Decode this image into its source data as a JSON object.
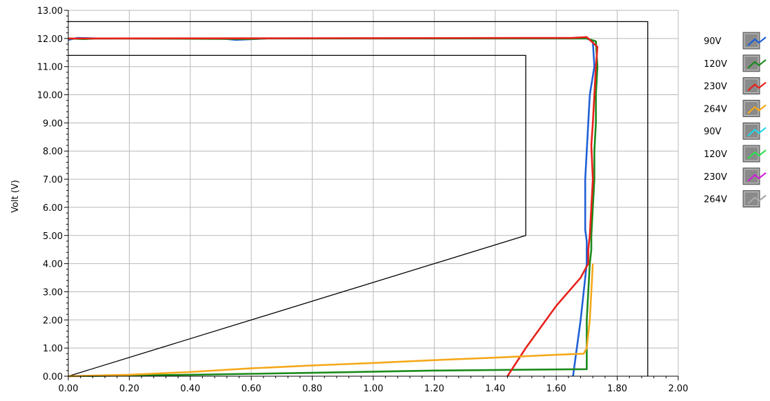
{
  "chart_data": {
    "type": "line",
    "title": "",
    "xlabel": "",
    "ylabel": "Volt (V)",
    "xlim": [
      0,
      2
    ],
    "ylim": [
      0,
      13
    ],
    "grid": true,
    "legend_position": "right",
    "x_ticks": [
      "0.00",
      "0.20",
      "0.40",
      "0.60",
      "0.80",
      "1.00",
      "1.20",
      "1.40",
      "1.60",
      "1.80",
      "2.00"
    ],
    "y_ticks": [
      "0.00",
      "1.00",
      "2.00",
      "3.00",
      "4.00",
      "5.00",
      "6.00",
      "7.00",
      "8.00",
      "9.00",
      "10.00",
      "11.00",
      "12.00",
      "13.00"
    ],
    "series": [
      {
        "name": "90V",
        "color": "#1f5fd6",
        "points": [
          [
            0.0,
            11.95
          ],
          [
            0.03,
            12.02
          ],
          [
            0.1,
            12.0
          ],
          [
            0.5,
            12.0
          ],
          [
            0.55,
            11.95
          ],
          [
            0.65,
            12.0
          ],
          [
            1.7,
            12.0
          ],
          [
            1.72,
            11.9
          ],
          [
            1.725,
            11.0
          ],
          [
            1.71,
            10.0
          ],
          [
            1.705,
            9.0
          ],
          [
            1.7,
            8.0
          ],
          [
            1.695,
            7.0
          ],
          [
            1.695,
            6.0
          ],
          [
            1.695,
            5.2
          ],
          [
            1.7,
            4.8
          ],
          [
            1.7,
            4.0
          ],
          [
            1.69,
            3.0
          ],
          [
            1.68,
            2.0
          ],
          [
            1.665,
            0.8
          ],
          [
            1.655,
            0.0
          ]
        ]
      },
      {
        "name": "120V",
        "color": "#1a8a1a",
        "points": [
          [
            0.0,
            12.0
          ],
          [
            0.05,
            11.98
          ],
          [
            0.1,
            12.0
          ],
          [
            0.6,
            11.98
          ],
          [
            0.65,
            12.0
          ],
          [
            1.7,
            12.0
          ],
          [
            1.73,
            11.9
          ],
          [
            1.735,
            11.0
          ],
          [
            1.73,
            10.0
          ],
          [
            1.73,
            9.0
          ],
          [
            1.725,
            8.0
          ],
          [
            1.725,
            7.0
          ],
          [
            1.72,
            6.0
          ],
          [
            1.715,
            5.0
          ],
          [
            1.715,
            4.5
          ],
          [
            1.71,
            4.0
          ],
          [
            1.705,
            3.0
          ],
          [
            1.7,
            2.0
          ],
          [
            1.7,
            1.0
          ],
          [
            1.7,
            0.25
          ],
          [
            1.6,
            0.24
          ],
          [
            1.2,
            0.2
          ],
          [
            0.8,
            0.12
          ],
          [
            0.4,
            0.05
          ],
          [
            0.1,
            0.01
          ],
          [
            0.0,
            0.0
          ]
        ]
      },
      {
        "name": "230V",
        "color": "#e8201a",
        "points": [
          [
            0.0,
            12.0
          ],
          [
            1.65,
            12.02
          ],
          [
            1.7,
            12.05
          ],
          [
            1.735,
            11.7
          ],
          [
            1.73,
            11.0
          ],
          [
            1.725,
            10.0
          ],
          [
            1.72,
            9.0
          ],
          [
            1.715,
            8.2
          ],
          [
            1.72,
            7.0
          ],
          [
            1.715,
            6.0
          ],
          [
            1.71,
            5.0
          ],
          [
            1.705,
            4.5
          ],
          [
            1.705,
            4.0
          ],
          [
            1.68,
            3.5
          ],
          [
            1.6,
            2.5
          ],
          [
            1.5,
            1.0
          ],
          [
            1.44,
            0.0
          ]
        ]
      },
      {
        "name": "264V",
        "color": "#f5a81a",
        "points": [
          [
            0.0,
            0.0
          ],
          [
            0.2,
            0.05
          ],
          [
            0.4,
            0.15
          ],
          [
            0.6,
            0.28
          ],
          [
            0.8,
            0.38
          ],
          [
            1.0,
            0.47
          ],
          [
            1.2,
            0.57
          ],
          [
            1.4,
            0.66
          ],
          [
            1.6,
            0.76
          ],
          [
            1.69,
            0.8
          ],
          [
            1.7,
            1.0
          ],
          [
            1.71,
            2.0
          ],
          [
            1.715,
            3.0
          ],
          [
            1.72,
            4.0
          ]
        ]
      },
      {
        "name": "90V",
        "color": "#20d8e8",
        "points": []
      },
      {
        "name": "120V",
        "color": "#30e050",
        "points": []
      },
      {
        "name": "230V",
        "color": "#d020d8",
        "points": []
      },
      {
        "name": "264V",
        "color": "#a8a8a8",
        "points": []
      }
    ],
    "limit_lines": [
      {
        "color": "#000000",
        "points": [
          [
            0.0,
            12.6
          ],
          [
            1.9,
            12.6
          ],
          [
            1.9,
            0.0
          ]
        ]
      },
      {
        "color": "#000000",
        "points": [
          [
            0.0,
            11.4
          ],
          [
            1.5,
            11.4
          ],
          [
            1.5,
            5.0
          ],
          [
            0.0,
            0.0
          ]
        ]
      }
    ]
  }
}
